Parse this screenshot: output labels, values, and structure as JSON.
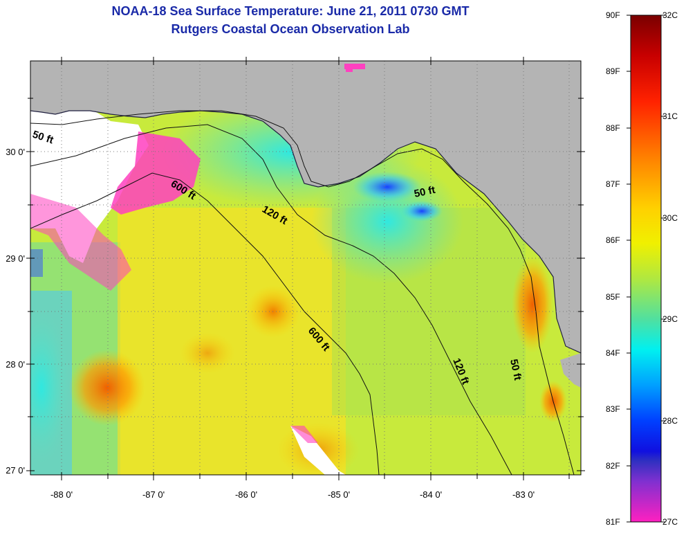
{
  "title": "NOAA-18 Sea Surface Temperature:  June 21, 2011 0730 GMT",
  "subtitle": "Rutgers Coastal Ocean Observation Lab",
  "latitude_labels": [
    "30 0'",
    "29 0'",
    "28 0'",
    "27 0'"
  ],
  "longitude_labels": [
    "-88 0'",
    "-87 0'",
    "-86 0'",
    "-85 0'",
    "-84 0'",
    "-83 0'"
  ],
  "depth_contour_labels": [
    "50 ft",
    "600 ft",
    "120 ft",
    "50 ft",
    "600 ft",
    "120 ft",
    "50 ft"
  ],
  "colorbar": {
    "fahrenheit_labels": [
      "90F",
      "89F",
      "88F",
      "87F",
      "86F",
      "85F",
      "84F",
      "83F",
      "82F",
      "81F"
    ],
    "celsius_labels": [
      "32C",
      "31C",
      "30C",
      "29C",
      "28C",
      "27C"
    ],
    "colors": [
      "#7a0000",
      "#d40000",
      "#ff3a00",
      "#ff8c00",
      "#ffd700",
      "#d8f020",
      "#7fe060",
      "#30e0d0",
      "#00c8ff",
      "#0070ff",
      "#1020e0",
      "#7a30e0",
      "#e040c0",
      "#ff40c0"
    ]
  },
  "colors": {
    "land": "#b4b4b4",
    "cloud_mask": "#ffffff",
    "title_text": "#1a2aa8"
  }
}
